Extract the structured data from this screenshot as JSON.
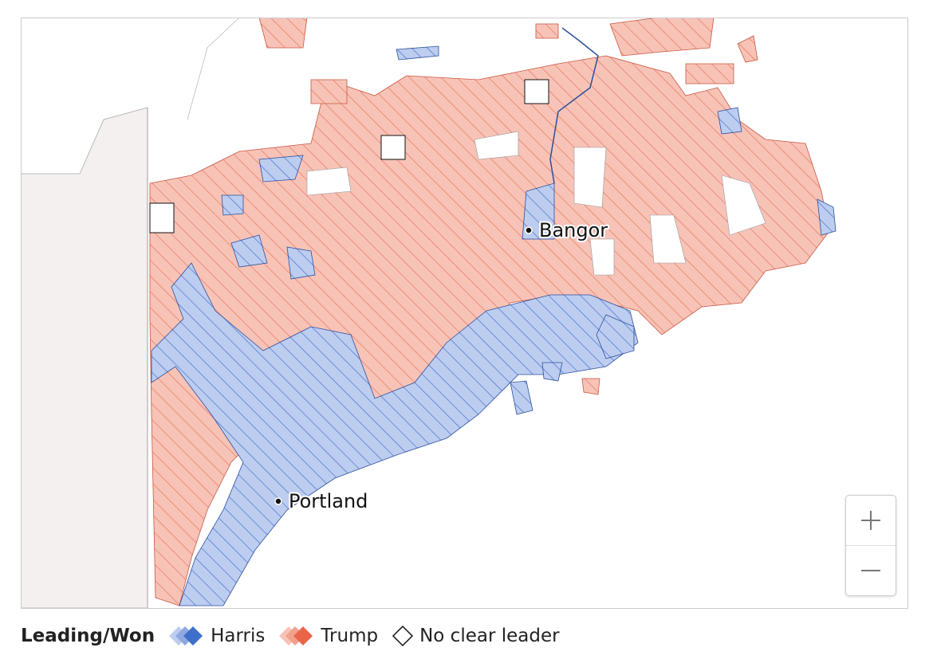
{
  "map": {
    "cities": [
      {
        "label": "Bangor"
      },
      {
        "label": "Portland"
      }
    ]
  },
  "legend": {
    "title": "Leading/Won",
    "items": [
      "Harris",
      "Trump",
      "No clear leader"
    ]
  }
}
